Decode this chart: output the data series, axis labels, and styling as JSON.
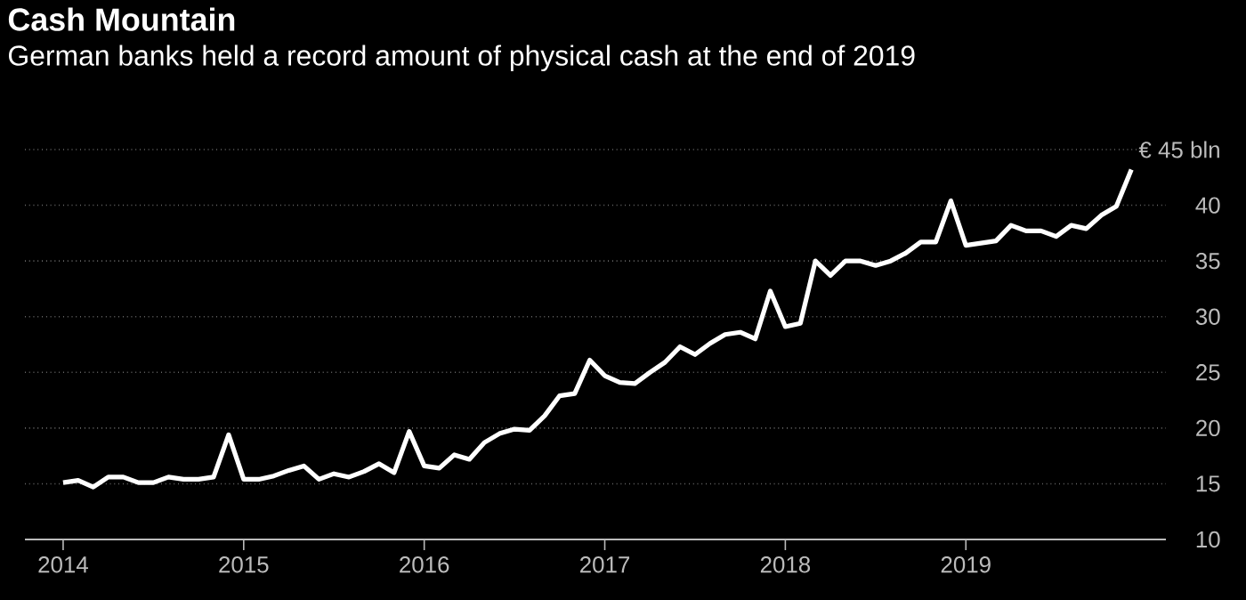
{
  "chart_data": {
    "type": "line",
    "title": "Cash Mountain",
    "subtitle": "German banks held a record amount of physical cash at the end of 2019",
    "x": [
      "2014-01",
      "2014-02",
      "2014-03",
      "2014-04",
      "2014-05",
      "2014-06",
      "2014-07",
      "2014-08",
      "2014-09",
      "2014-10",
      "2014-11",
      "2014-12",
      "2015-01",
      "2015-02",
      "2015-03",
      "2015-04",
      "2015-05",
      "2015-06",
      "2015-07",
      "2015-08",
      "2015-09",
      "2015-10",
      "2015-11",
      "2015-12",
      "2016-01",
      "2016-02",
      "2016-03",
      "2016-04",
      "2016-05",
      "2016-06",
      "2016-07",
      "2016-08",
      "2016-09",
      "2016-10",
      "2016-11",
      "2016-12",
      "2017-01",
      "2017-02",
      "2017-03",
      "2017-04",
      "2017-05",
      "2017-06",
      "2017-07",
      "2017-08",
      "2017-09",
      "2017-10",
      "2017-11",
      "2017-12",
      "2018-01",
      "2018-02",
      "2018-03",
      "2018-04",
      "2018-05",
      "2018-06",
      "2018-07",
      "2018-08",
      "2018-09",
      "2018-10",
      "2018-11",
      "2018-12",
      "2019-01",
      "2019-02",
      "2019-03",
      "2019-04",
      "2019-05",
      "2019-06",
      "2019-07",
      "2019-08",
      "2019-09",
      "2019-10",
      "2019-11",
      "2019-12"
    ],
    "series": [
      {
        "color": "#ffffff",
        "values": [
          15.1,
          15.3,
          14.7,
          15.6,
          15.6,
          15.1,
          15.1,
          15.6,
          15.4,
          15.4,
          15.6,
          19.4,
          15.4,
          15.4,
          15.7,
          16.2,
          16.6,
          15.4,
          15.9,
          15.6,
          16.1,
          16.8,
          16.0,
          19.7,
          16.6,
          16.4,
          17.6,
          17.2,
          18.7,
          19.5,
          19.9,
          19.8,
          21.1,
          22.9,
          23.1,
          26.1,
          24.7,
          24.1,
          24.0,
          25.0,
          25.9,
          27.3,
          26.6,
          27.6,
          28.4,
          28.6,
          28.0,
          32.3,
          29.1,
          29.4,
          35.0,
          33.7,
          35.0,
          35.0,
          34.6,
          35.0,
          35.7,
          36.7,
          36.7,
          40.4,
          36.4,
          36.6,
          36.8,
          38.2,
          37.7,
          37.7,
          37.2,
          38.2,
          37.9,
          39.1,
          39.9,
          43.2
        ]
      }
    ],
    "xlim": [
      "2013-10-15",
      "2020-02-10"
    ],
    "xticks": [
      "2014",
      "2015",
      "2016",
      "2017",
      "2018",
      "2019"
    ],
    "ylim": [
      10,
      45
    ],
    "yticks": [
      10,
      15,
      20,
      25,
      30,
      35,
      40,
      {
        "value": 45,
        "label": "€ 45 bln"
      }
    ],
    "grid": "y",
    "marker": "none",
    "line_style": "solid"
  }
}
